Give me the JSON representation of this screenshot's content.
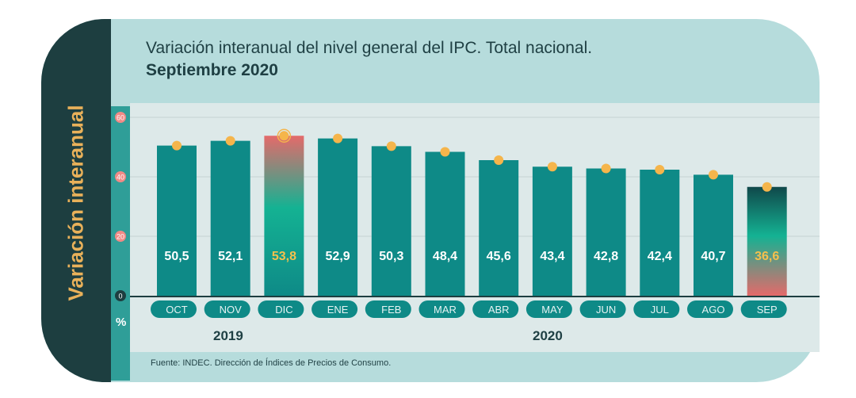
{
  "header": {
    "side_label": "Variación interanual",
    "title_line1": "Variación interanual del nivel general del IPC. Total nacional.",
    "title_line2": "Septiembre 2020"
  },
  "footer": {
    "source": "Fuente: INDEC. Dirección de Índices de Precios de Consumo.",
    "year_2019": "2019",
    "year_2020": "2020"
  },
  "colors": {
    "bar": "#0e8a87",
    "dot": "#f5b54b",
    "label": "#ffffff",
    "highlight_label": "#f5c04d",
    "gradient_warm": "#e46a6a",
    "gradient_mid": "#14b293",
    "gradient_dark": "#10484a"
  },
  "chart_data": {
    "type": "bar",
    "categories": [
      "OCT",
      "NOV",
      "DIC",
      "ENE",
      "FEB",
      "MAR",
      "ABR",
      "MAY",
      "JUN",
      "JUL",
      "AGO",
      "SEP"
    ],
    "values": [
      50.5,
      52.1,
      53.8,
      52.9,
      50.3,
      48.4,
      45.6,
      43.4,
      42.8,
      42.4,
      40.7,
      36.6
    ],
    "value_labels": [
      "50,5",
      "52,1",
      "53,8",
      "52,9",
      "50,3",
      "48,4",
      "45,6",
      "43,4",
      "42,8",
      "42,4",
      "40,7",
      "36,6"
    ],
    "highlighted": [
      "DIC",
      "SEP"
    ],
    "ylabel": "%",
    "ylim": [
      0,
      60
    ],
    "yticks": [
      0,
      20,
      40,
      60
    ],
    "grid": true
  }
}
